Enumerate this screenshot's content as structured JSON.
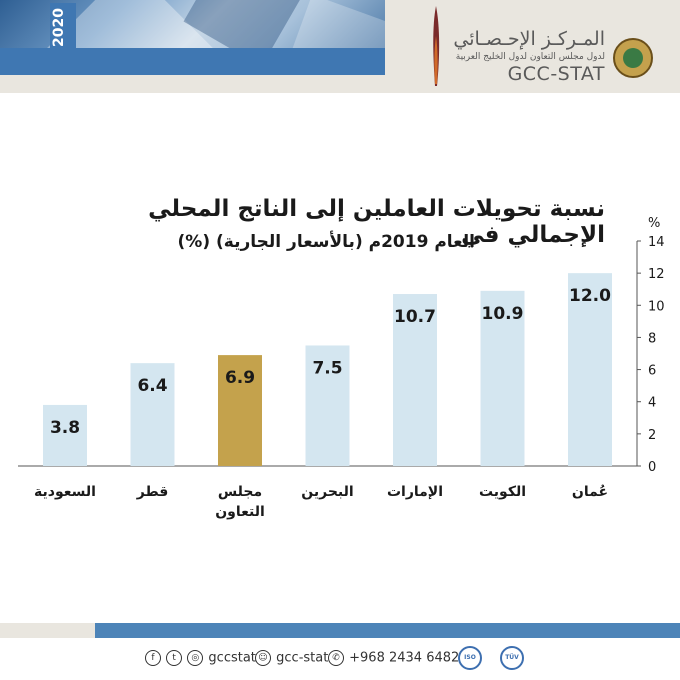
{
  "header": {
    "year": "2020",
    "org_name_ar": "المـركـز الإحـصـائي",
    "org_subtitle_ar": "لدول مجلس التعاون لدول الخليج العربية",
    "org_name_en": "GCC-STAT"
  },
  "chart_data": {
    "type": "bar",
    "title": "نسبة تحويلات العاملين إلى الناتج المحلي الإجمالي في",
    "subtitle": "العام 2019م (بالأسعار الجارية) (%)",
    "ylabel": "%",
    "ylim": [
      0,
      14
    ],
    "yticks": [
      "0",
      "2",
      "4",
      "6",
      "8",
      "10",
      "12",
      "14"
    ],
    "categories": [
      "السعودية",
      "قطر",
      "مجلس التعاون",
      "البحرين",
      "الإمارات",
      "الكويت",
      "عُمان"
    ],
    "category_lines": [
      [
        "السعودية"
      ],
      [
        "قطر"
      ],
      [
        "مجلس",
        "التعاون"
      ],
      [
        "البحرين"
      ],
      [
        "الإمارات"
      ],
      [
        "الكويت"
      ],
      [
        "عُمان"
      ]
    ],
    "values": [
      3.8,
      6.4,
      6.9,
      7.5,
      10.7,
      10.9,
      12.0
    ],
    "value_labels": [
      "3.8",
      "6.4",
      "6.9",
      "7.5",
      "10.7",
      "10.9",
      "12.0"
    ],
    "highlight_index": 2,
    "colors": {
      "bar": "#d4e6f0",
      "highlight": "#c4a24c",
      "axis": "#555555"
    },
    "grid": false,
    "legend": "none"
  },
  "footer": {
    "twitter_handle": "gccstat",
    "snapchat_handle": "gcc-stat",
    "phone": "+968 2434 6482",
    "icons": [
      "facebook-icon",
      "twitter-icon",
      "instagram-icon",
      "snapchat-icon",
      "whatsapp-icon"
    ]
  }
}
